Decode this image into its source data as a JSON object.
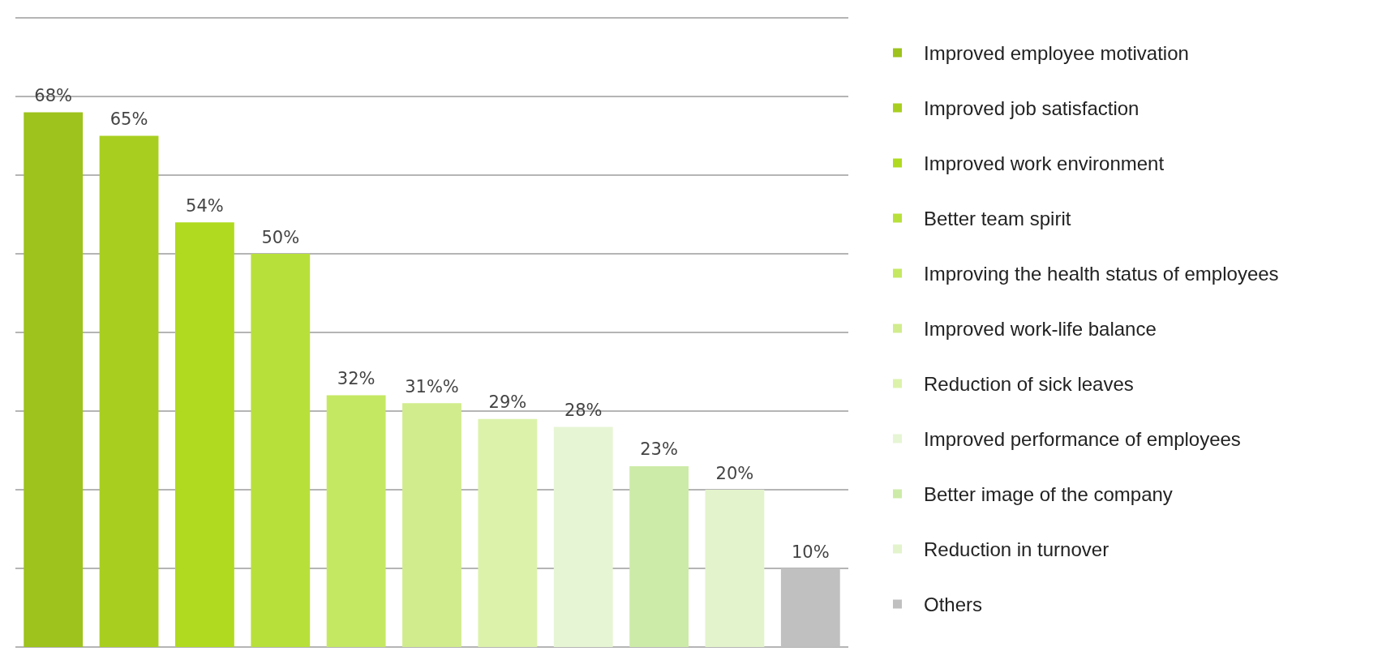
{
  "chart_data": {
    "type": "bar",
    "categories": [
      null,
      null,
      null,
      null,
      null,
      null,
      null,
      null,
      null,
      null,
      null
    ],
    "stacked": true,
    "ylim": [
      0,
      80
    ],
    "yticks": [
      {
        "value": 0,
        "label": null
      },
      {
        "value": 10,
        "label": null
      },
      {
        "value": 20,
        "label": null
      },
      {
        "value": 30,
        "label": null
      },
      {
        "value": 40,
        "label": null
      },
      {
        "value": 50,
        "label": null
      },
      {
        "value": 60,
        "label": null
      },
      {
        "value": 70,
        "label": null
      },
      {
        "value": 80,
        "label": null
      }
    ],
    "grid": "y",
    "legend": "right",
    "series": [
      {
        "name": "Improved employee motivation",
        "color": "#9dc31c",
        "values": [
          68,
          null,
          null,
          null,
          null,
          null,
          null,
          null,
          null,
          null,
          null
        ],
        "value_labels": [
          "68%",
          null,
          null,
          null,
          null,
          null,
          null,
          null,
          null,
          null,
          null
        ]
      },
      {
        "name": "Improved job satisfaction",
        "color": "#a8cf1f",
        "values": [
          null,
          65,
          null,
          null,
          null,
          null,
          null,
          null,
          null,
          null,
          null
        ],
        "value_labels": [
          null,
          "65%",
          null,
          null,
          null,
          null,
          null,
          null,
          null,
          null,
          null
        ]
      },
      {
        "name": "Improved work environment",
        "color": "#b0da1f",
        "values": [
          null,
          null,
          54,
          null,
          null,
          null,
          null,
          null,
          null,
          null,
          null
        ],
        "value_labels": [
          null,
          null,
          "54%",
          null,
          null,
          null,
          null,
          null,
          null,
          null,
          null
        ]
      },
      {
        "name": "Better team spirit",
        "color": "#b8e03a",
        "values": [
          null,
          null,
          null,
          50,
          null,
          null,
          null,
          null,
          null,
          null,
          null
        ],
        "value_labels": [
          null,
          null,
          null,
          "50%",
          null,
          null,
          null,
          null,
          null,
          null,
          null
        ]
      },
      {
        "name": "Improving the health status of employees",
        "color": "#c5e862",
        "values": [
          null,
          null,
          null,
          null,
          32,
          null,
          null,
          null,
          null,
          null,
          null
        ],
        "value_labels": [
          null,
          null,
          null,
          null,
          "32%",
          null,
          null,
          null,
          null,
          null,
          null
        ]
      },
      {
        "name": "Improved work-life balance",
        "color": "#d1ec8c",
        "values": [
          null,
          null,
          null,
          null,
          null,
          31,
          null,
          null,
          null,
          null,
          null
        ],
        "value_labels": [
          null,
          null,
          null,
          null,
          null,
          "31%%",
          null,
          null,
          null,
          null,
          null
        ]
      },
      {
        "name": "Reduction of sick leaves",
        "color": "#dcf2ab",
        "values": [
          null,
          null,
          null,
          null,
          null,
          null,
          29,
          null,
          null,
          null,
          null
        ],
        "value_labels": [
          null,
          null,
          null,
          null,
          null,
          null,
          "29%",
          null,
          null,
          null,
          null
        ]
      },
      {
        "name": "Improved performance of employees",
        "color": "#e6f5d4",
        "values": [
          null,
          null,
          null,
          null,
          null,
          null,
          null,
          28,
          null,
          null,
          null
        ],
        "value_labels": [
          null,
          null,
          null,
          null,
          null,
          null,
          null,
          "28%",
          null,
          null,
          null
        ]
      },
      {
        "name": "Better image of the company",
        "color": "#cdeba8",
        "values": [
          null,
          null,
          null,
          null,
          null,
          null,
          null,
          null,
          23,
          null,
          null
        ],
        "value_labels": [
          null,
          null,
          null,
          null,
          null,
          null,
          null,
          null,
          "23%",
          null,
          null
        ]
      },
      {
        "name": "Reduction in turnover",
        "color": "#e3f3cc",
        "values": [
          null,
          null,
          null,
          null,
          null,
          null,
          null,
          null,
          null,
          20,
          null
        ],
        "value_labels": [
          null,
          null,
          null,
          null,
          null,
          null,
          null,
          null,
          null,
          "20%",
          null
        ]
      },
      {
        "name": "Others",
        "color": "#c0c0c0",
        "values": [
          null,
          null,
          null,
          null,
          null,
          null,
          null,
          null,
          null,
          null,
          10
        ],
        "value_labels": [
          null,
          null,
          null,
          null,
          null,
          null,
          null,
          null,
          null,
          null,
          "10%"
        ]
      }
    ]
  }
}
